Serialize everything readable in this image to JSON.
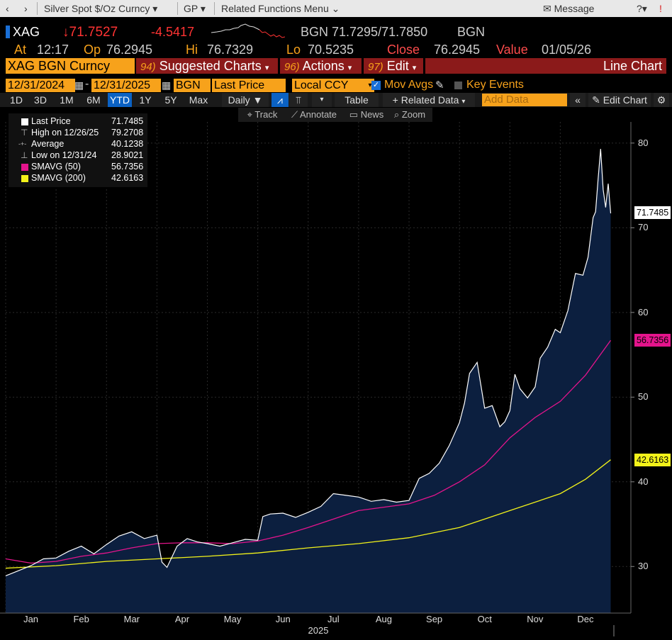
{
  "topbar": {
    "back": "‹",
    "forward": "›",
    "security_menu": "Silver Spot $/Oz Curncy",
    "gp_menu": "GP",
    "related_menu": "Related Functions Menu",
    "message": "Message"
  },
  "quote": {
    "ticker": "XAG",
    "last": "↓71.7527",
    "change": "-4.5417",
    "bid_src": "BGN",
    "bid_ask": "71.7295/71.7850",
    "ask_src": "BGN",
    "at_label": "At",
    "time": "12:17",
    "op_label": "Op",
    "open": "76.2945",
    "hi_label": "Hi",
    "high": "76.7329",
    "lo_label": "Lo",
    "low": "70.5235",
    "close_label": "Close",
    "close": "76.2945",
    "value_label": "Value",
    "value_date": "01/05/26"
  },
  "menubar": {
    "security": "XAG BGN Curncy",
    "suggested_num": "94)",
    "suggested": "Suggested Charts",
    "actions_num": "96)",
    "actions": "Actions",
    "edit_num": "97)",
    "edit": "Edit",
    "chart_type": "Line Chart"
  },
  "controls": {
    "start_date": "12/31/2024",
    "end_date": "12/31/2025",
    "source": "BGN",
    "field": "Last Price",
    "currency": "Local CCY",
    "mov_avgs": "Mov Avgs",
    "key_events": "Key Events"
  },
  "periods": [
    "1D",
    "3D",
    "1M",
    "6M",
    "YTD",
    "1Y",
    "5Y",
    "Max"
  ],
  "toolbar": {
    "frequency": "Daily",
    "table": "Table",
    "related_data": "Related Data",
    "add_data_placeholder": "Add Data",
    "edit_chart": "Edit Chart"
  },
  "tools": {
    "track": "Track",
    "annotate": "Annotate",
    "news": "News",
    "zoom": "Zoom"
  },
  "legend": [
    {
      "name": "Last Price",
      "value": "71.7485",
      "color": "#ffffff",
      "marker": "square"
    },
    {
      "name": "High on 12/26/25",
      "value": "79.2708",
      "color": "#ffffff",
      "marker": "high"
    },
    {
      "name": "Average",
      "value": "40.1238",
      "color": "#ffffff",
      "marker": "avg"
    },
    {
      "name": "Low on 12/31/24",
      "value": "28.9021",
      "color": "#ffffff",
      "marker": "low"
    },
    {
      "name": "SMAVG (50)",
      "value": "56.7356",
      "color": "#e4148c",
      "marker": "square"
    },
    {
      "name": "SMAVG (200)",
      "value": "42.6163",
      "color": "#f2f21a",
      "marker": "square"
    }
  ],
  "chart_data": {
    "type": "area",
    "title": "Silver Spot $/Oz Curncy",
    "xlabel": "2025",
    "ylabel": "",
    "ylim": [
      24.5,
      82.5
    ],
    "y_ticks": [
      30,
      40,
      50,
      60,
      70,
      80
    ],
    "month_ticks": [
      "Jan",
      "Feb",
      "Mar",
      "Apr",
      "May",
      "Jun",
      "Jul",
      "Aug",
      "Sep",
      "Oct",
      "Nov",
      "Dec"
    ],
    "x_range_months": [
      0,
      12.4
    ],
    "grid": true,
    "series": [
      {
        "name": "Last Price",
        "color": "#ffffff",
        "fill": "#0c1f3f",
        "x": [
          0,
          0.25,
          0.5,
          0.75,
          1.0,
          1.25,
          1.5,
          1.75,
          2.0,
          2.25,
          2.5,
          2.75,
          3.0,
          3.1,
          3.2,
          3.4,
          3.6,
          3.8,
          4.0,
          4.25,
          4.5,
          4.75,
          5.0,
          5.1,
          5.25,
          5.5,
          5.75,
          6.0,
          6.25,
          6.5,
          6.75,
          7.0,
          7.25,
          7.5,
          7.75,
          8.0,
          8.2,
          8.4,
          8.6,
          8.8,
          9.0,
          9.1,
          9.2,
          9.35,
          9.5,
          9.65,
          9.8,
          9.9,
          10.0,
          10.1,
          10.2,
          10.35,
          10.5,
          10.6,
          10.75,
          10.9,
          11.0,
          11.15,
          11.3,
          11.45,
          11.55,
          11.65,
          11.7,
          11.75,
          11.8,
          11.85,
          11.9,
          11.95,
          12.0
        ],
        "values": [
          28.9,
          29.5,
          30.1,
          30.9,
          31.0,
          31.8,
          32.4,
          31.5,
          32.6,
          33.6,
          34.1,
          33.3,
          33.7,
          30.5,
          29.9,
          32.4,
          33.3,
          32.9,
          32.7,
          32.4,
          32.8,
          33.2,
          33.1,
          35.9,
          36.2,
          36.3,
          35.8,
          36.4,
          37.1,
          38.6,
          38.4,
          38.2,
          37.7,
          37.9,
          37.6,
          37.8,
          40.4,
          41.0,
          42.2,
          44.3,
          47.0,
          49.3,
          52.8,
          54.1,
          48.7,
          49.0,
          46.5,
          47.1,
          48.4,
          52.7,
          51.0,
          49.9,
          51.2,
          54.6,
          55.9,
          58.0,
          57.6,
          60.2,
          64.6,
          64.4,
          66.5,
          71.2,
          71.9,
          75.8,
          79.3,
          74.5,
          72.4,
          75.2,
          71.7
        ]
      },
      {
        "name": "SMAVG (50)",
        "color": "#e4148c",
        "x": [
          0,
          0.5,
          1,
          1.5,
          2,
          2.5,
          3,
          3.5,
          4,
          4.5,
          5,
          5.5,
          6,
          6.5,
          7,
          7.5,
          8,
          8.5,
          9,
          9.5,
          10,
          10.5,
          11,
          11.5,
          12
        ],
        "values": [
          30.9,
          30.4,
          30.6,
          31.2,
          31.6,
          32.2,
          32.7,
          32.8,
          32.8,
          32.7,
          33.0,
          33.7,
          34.6,
          35.6,
          36.6,
          37.0,
          37.4,
          38.4,
          40.0,
          42.0,
          45.2,
          47.6,
          49.5,
          52.6,
          56.7
        ]
      },
      {
        "name": "SMAVG (200)",
        "color": "#f2f21a",
        "x": [
          0,
          1,
          2,
          3,
          4,
          5,
          6,
          7,
          8,
          8.5,
          9,
          9.5,
          10,
          10.5,
          11,
          11.5,
          12
        ],
        "values": [
          29.8,
          30.1,
          30.6,
          30.9,
          31.2,
          31.6,
          32.2,
          32.7,
          33.4,
          34.0,
          34.6,
          35.6,
          36.6,
          37.6,
          38.6,
          40.3,
          42.6
        ]
      }
    ],
    "last_labels": [
      {
        "value": "71.7485",
        "y": 71.7485,
        "color": "#ffffff"
      },
      {
        "value": "56.7356",
        "y": 56.7356,
        "color": "#e4148c"
      },
      {
        "value": "42.6163",
        "y": 42.6163,
        "color": "#f2f21a"
      }
    ]
  }
}
